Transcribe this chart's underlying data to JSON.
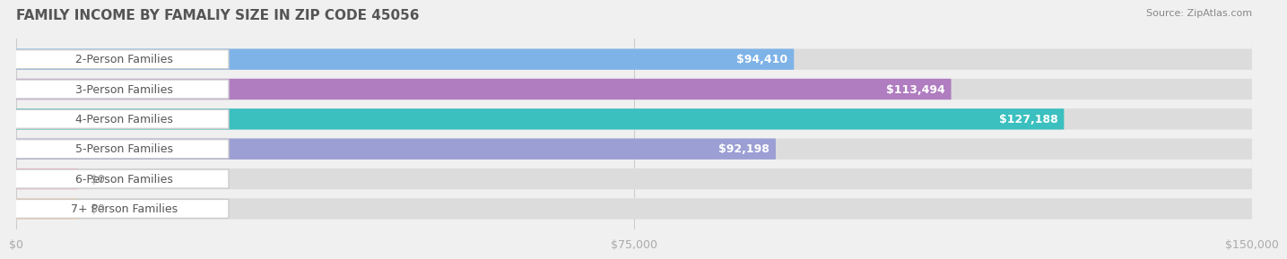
{
  "title": "FAMILY INCOME BY FAMALIY SIZE IN ZIP CODE 45056",
  "source": "Source: ZipAtlas.com",
  "categories": [
    "2-Person Families",
    "3-Person Families",
    "4-Person Families",
    "5-Person Families",
    "6-Person Families",
    "7+ Person Families"
  ],
  "values": [
    94410,
    113494,
    127188,
    92198,
    0,
    0
  ],
  "bar_colors": [
    "#7EB3E8",
    "#B07DC0",
    "#3BBFBF",
    "#9B9FD4",
    "#F9A8B8",
    "#F9CFA0"
  ],
  "label_texts": [
    "$94,410",
    "$113,494",
    "$127,188",
    "$92,198",
    "$0",
    "$0"
  ],
  "xlim": [
    0,
    150000
  ],
  "xticks": [
    0,
    75000,
    150000
  ],
  "xtick_labels": [
    "$0",
    "$75,000",
    "$150,000"
  ],
  "background_color": "#f0f0f0",
  "bar_background": "#e8e8e8",
  "title_fontsize": 11,
  "source_fontsize": 8,
  "label_fontsize": 9,
  "category_fontsize": 9
}
